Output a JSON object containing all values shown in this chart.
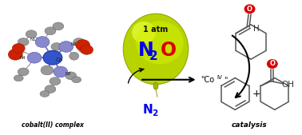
{
  "background_color": "#ffffff",
  "balloon_color_main": "#b8d400",
  "balloon_color_light": "#d4f000",
  "balloon_color_highlight": "#e8ff40",
  "balloon_edge": "#90a800",
  "atm_text": "1 atm",
  "n2o_N_color": "#0000ee",
  "n2o_O_color": "#dd0000",
  "n2_color": "#0000ee",
  "cobalt_label": "cobalt(II) complex",
  "catalysis_label": "catalysis",
  "arrow_color": "#111111",
  "bond_color": "#555555",
  "oxygen_color": "#dd0000",
  "ring_color": "#555555",
  "coiv_color": "#111111",
  "figsize": [
    3.78,
    1.69
  ],
  "dpi": 100
}
